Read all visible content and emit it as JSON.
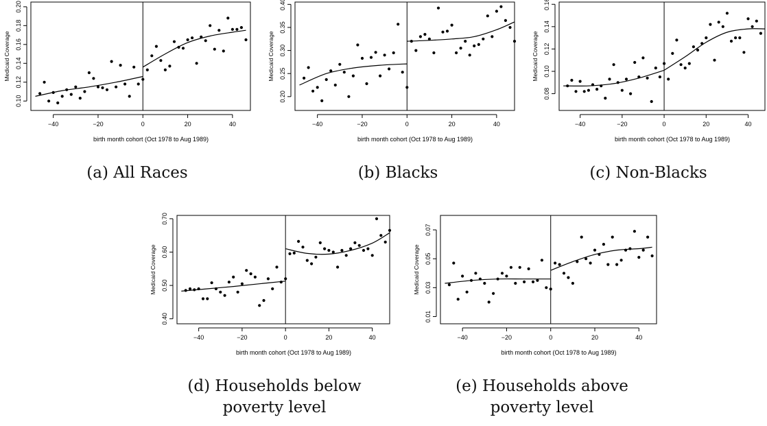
{
  "figure": {
    "captions": [
      {
        "line1": "(a) All Races",
        "line2": ""
      },
      {
        "line1": "(b) Blacks",
        "line2": ""
      },
      {
        "line1": "(c) Non-Blacks",
        "line2": ""
      },
      {
        "line1": "(d) Households below",
        "line2": "poverty level"
      },
      {
        "line1": "(e) Households above",
        "line2": "poverty level"
      }
    ]
  },
  "chart_data": [
    {
      "type": "scatter",
      "panel": "a",
      "xlabel": "birth month cohort (Oct 1978 to Aug 1989)",
      "ylabel": "Medicaid Coverage",
      "xlim": [
        -50,
        48
      ],
      "ylim": [
        0.09,
        0.205
      ],
      "xticks": [
        -40,
        -20,
        0,
        20,
        40
      ],
      "yticks": [
        "0.10",
        "0.12",
        "0.14",
        "0.16",
        "0.18",
        "0.20"
      ],
      "cutoff": 0,
      "points": [
        [
          -46,
          0.108
        ],
        [
          -44,
          0.12
        ],
        [
          -42,
          0.1
        ],
        [
          -40,
          0.109
        ],
        [
          -38,
          0.098
        ],
        [
          -36,
          0.105
        ],
        [
          -34,
          0.112
        ],
        [
          -32,
          0.107
        ],
        [
          -30,
          0.115
        ],
        [
          -28,
          0.103
        ],
        [
          -26,
          0.11
        ],
        [
          -24,
          0.13
        ],
        [
          -22,
          0.124
        ],
        [
          -20,
          0.115
        ],
        [
          -18,
          0.114
        ],
        [
          -16,
          0.112
        ],
        [
          -14,
          0.142
        ],
        [
          -12,
          0.115
        ],
        [
          -10,
          0.138
        ],
        [
          -8,
          0.118
        ],
        [
          -6,
          0.105
        ],
        [
          -4,
          0.136
        ],
        [
          -2,
          0.118
        ],
        [
          0,
          0.123
        ],
        [
          2,
          0.133
        ],
        [
          4,
          0.148
        ],
        [
          6,
          0.158
        ],
        [
          8,
          0.143
        ],
        [
          10,
          0.133
        ],
        [
          12,
          0.137
        ],
        [
          14,
          0.163
        ],
        [
          16,
          0.157
        ],
        [
          18,
          0.156
        ],
        [
          20,
          0.165
        ],
        [
          22,
          0.167
        ],
        [
          24,
          0.14
        ],
        [
          26,
          0.168
        ],
        [
          28,
          0.164
        ],
        [
          30,
          0.18
        ],
        [
          32,
          0.155
        ],
        [
          34,
          0.175
        ],
        [
          36,
          0.153
        ],
        [
          38,
          0.188
        ],
        [
          40,
          0.176
        ],
        [
          42,
          0.176
        ],
        [
          44,
          0.178
        ],
        [
          46,
          0.165
        ]
      ],
      "fit_left": [
        [
          -48,
          0.105
        ],
        [
          -36,
          0.111
        ],
        [
          -24,
          0.115
        ],
        [
          -12,
          0.12
        ],
        [
          0,
          0.126
        ]
      ],
      "fit_right": [
        [
          0,
          0.136
        ],
        [
          10,
          0.15
        ],
        [
          20,
          0.162
        ],
        [
          30,
          0.169
        ],
        [
          40,
          0.173
        ],
        [
          46,
          0.175
        ]
      ]
    },
    {
      "type": "scatter",
      "panel": "b",
      "xlabel": "birth month cohort (Oct 1978 to Aug 1989)",
      "ylabel": "Medicaid Coverage",
      "xlim": [
        -50,
        48
      ],
      "ylim": [
        0.17,
        0.405
      ],
      "xticks": [
        -40,
        -20,
        0,
        20,
        40
      ],
      "yticks": [
        "0.20",
        "0.25",
        "0.30",
        "0.35",
        "0.40"
      ],
      "cutoff": 0,
      "points": [
        [
          -46,
          0.24
        ],
        [
          -44,
          0.263
        ],
        [
          -42,
          0.212
        ],
        [
          -40,
          0.22
        ],
        [
          -38,
          0.191
        ],
        [
          -36,
          0.237
        ],
        [
          -34,
          0.256
        ],
        [
          -32,
          0.225
        ],
        [
          -30,
          0.27
        ],
        [
          -28,
          0.253
        ],
        [
          -26,
          0.2
        ],
        [
          -24,
          0.245
        ],
        [
          -22,
          0.312
        ],
        [
          -20,
          0.283
        ],
        [
          -18,
          0.228
        ],
        [
          -16,
          0.285
        ],
        [
          -14,
          0.296
        ],
        [
          -12,
          0.245
        ],
        [
          -10,
          0.29
        ],
        [
          -8,
          0.26
        ],
        [
          -6,
          0.295
        ],
        [
          -4,
          0.357
        ],
        [
          -2,
          0.253
        ],
        [
          0,
          0.22
        ],
        [
          2,
          0.32
        ],
        [
          4,
          0.3
        ],
        [
          6,
          0.33
        ],
        [
          8,
          0.335
        ],
        [
          10,
          0.325
        ],
        [
          12,
          0.295
        ],
        [
          14,
          0.392
        ],
        [
          16,
          0.34
        ],
        [
          18,
          0.342
        ],
        [
          20,
          0.355
        ],
        [
          22,
          0.295
        ],
        [
          24,
          0.305
        ],
        [
          26,
          0.32
        ],
        [
          28,
          0.29
        ],
        [
          30,
          0.31
        ],
        [
          32,
          0.313
        ],
        [
          34,
          0.325
        ],
        [
          36,
          0.375
        ],
        [
          38,
          0.33
        ],
        [
          40,
          0.385
        ],
        [
          42,
          0.395
        ],
        [
          44,
          0.365
        ],
        [
          46,
          0.35
        ],
        [
          48,
          0.32
        ]
      ],
      "fit_left": [
        [
          -48,
          0.225
        ],
        [
          -36,
          0.25
        ],
        [
          -24,
          0.262
        ],
        [
          -12,
          0.268
        ],
        [
          0,
          0.271
        ]
      ],
      "fit_right": [
        [
          0,
          0.32
        ],
        [
          10,
          0.322
        ],
        [
          20,
          0.325
        ],
        [
          30,
          0.33
        ],
        [
          40,
          0.345
        ],
        [
          48,
          0.362
        ]
      ]
    },
    {
      "type": "scatter",
      "panel": "c",
      "xlabel": "birth month cohort (Oct 1978 to Aug 1989)",
      "ylabel": "Medicaid Coverage",
      "xlim": [
        -50,
        48
      ],
      "ylim": [
        0.065,
        0.162
      ],
      "xticks": [
        -40,
        -20,
        0,
        20,
        40
      ],
      "yticks": [
        "0.08",
        "0.10",
        "0.12",
        "0.14",
        "0.16"
      ],
      "cutoff": 0,
      "points": [
        [
          -46,
          0.087
        ],
        [
          -44,
          0.092
        ],
        [
          -42,
          0.082
        ],
        [
          -40,
          0.091
        ],
        [
          -38,
          0.082
        ],
        [
          -36,
          0.083
        ],
        [
          -34,
          0.088
        ],
        [
          -32,
          0.084
        ],
        [
          -30,
          0.087
        ],
        [
          -28,
          0.076
        ],
        [
          -26,
          0.093
        ],
        [
          -24,
          0.106
        ],
        [
          -22,
          0.09
        ],
        [
          -20,
          0.083
        ],
        [
          -18,
          0.093
        ],
        [
          -16,
          0.08
        ],
        [
          -14,
          0.108
        ],
        [
          -12,
          0.095
        ],
        [
          -10,
          0.112
        ],
        [
          -8,
          0.094
        ],
        [
          -6,
          0.073
        ],
        [
          -4,
          0.103
        ],
        [
          -2,
          0.095
        ],
        [
          0,
          0.107
        ],
        [
          2,
          0.093
        ],
        [
          4,
          0.116
        ],
        [
          6,
          0.128
        ],
        [
          8,
          0.106
        ],
        [
          10,
          0.103
        ],
        [
          12,
          0.107
        ],
        [
          14,
          0.122
        ],
        [
          16,
          0.119
        ],
        [
          18,
          0.125
        ],
        [
          20,
          0.13
        ],
        [
          22,
          0.142
        ],
        [
          24,
          0.11
        ],
        [
          26,
          0.144
        ],
        [
          28,
          0.14
        ],
        [
          30,
          0.152
        ],
        [
          32,
          0.127
        ],
        [
          34,
          0.13
        ],
        [
          36,
          0.13
        ],
        [
          38,
          0.117
        ],
        [
          40,
          0.147
        ],
        [
          42,
          0.14
        ],
        [
          44,
          0.145
        ],
        [
          46,
          0.134
        ]
      ],
      "fit_left": [
        [
          -48,
          0.087
        ],
        [
          -36,
          0.087
        ],
        [
          -24,
          0.089
        ],
        [
          -12,
          0.094
        ],
        [
          0,
          0.101
        ]
      ],
      "fit_right": [
        [
          0,
          0.101
        ],
        [
          10,
          0.113
        ],
        [
          20,
          0.126
        ],
        [
          30,
          0.135
        ],
        [
          40,
          0.138
        ],
        [
          48,
          0.138
        ]
      ]
    },
    {
      "type": "scatter",
      "panel": "d",
      "xlabel": "birth month cohort (Oct 1978 to Aug 1989)",
      "ylabel": "Medicaid Coverage",
      "xlim": [
        -50,
        48
      ],
      "ylim": [
        0.385,
        0.71
      ],
      "xticks": [
        -40,
        -20,
        0,
        20,
        40
      ],
      "yticks": [
        "0.40",
        "0.50",
        "0.60",
        "0.70"
      ],
      "cutoff": 0,
      "points": [
        [
          -46,
          0.485
        ],
        [
          -44,
          0.49
        ],
        [
          -42,
          0.487
        ],
        [
          -40,
          0.49
        ],
        [
          -38,
          0.46
        ],
        [
          -36,
          0.46
        ],
        [
          -34,
          0.508
        ],
        [
          -32,
          0.49
        ],
        [
          -30,
          0.48
        ],
        [
          -28,
          0.47
        ],
        [
          -26,
          0.51
        ],
        [
          -24,
          0.525
        ],
        [
          -22,
          0.48
        ],
        [
          -20,
          0.505
        ],
        [
          -18,
          0.545
        ],
        [
          -16,
          0.535
        ],
        [
          -14,
          0.525
        ],
        [
          -12,
          0.44
        ],
        [
          -10,
          0.455
        ],
        [
          -8,
          0.52
        ],
        [
          -6,
          0.49
        ],
        [
          -4,
          0.555
        ],
        [
          -2,
          0.51
        ],
        [
          0,
          0.52
        ],
        [
          2,
          0.595
        ],
        [
          4,
          0.597
        ],
        [
          6,
          0.632
        ],
        [
          8,
          0.615
        ],
        [
          10,
          0.575
        ],
        [
          12,
          0.565
        ],
        [
          14,
          0.585
        ],
        [
          16,
          0.628
        ],
        [
          18,
          0.61
        ],
        [
          20,
          0.605
        ],
        [
          22,
          0.6
        ],
        [
          24,
          0.555
        ],
        [
          26,
          0.605
        ],
        [
          28,
          0.59
        ],
        [
          30,
          0.61
        ],
        [
          32,
          0.628
        ],
        [
          34,
          0.62
        ],
        [
          36,
          0.605
        ],
        [
          38,
          0.61
        ],
        [
          40,
          0.59
        ],
        [
          42,
          0.7
        ],
        [
          44,
          0.65
        ],
        [
          46,
          0.63
        ],
        [
          48,
          0.665
        ]
      ],
      "fit_left": [
        [
          -48,
          0.483
        ],
        [
          -36,
          0.49
        ],
        [
          -24,
          0.497
        ],
        [
          -12,
          0.505
        ],
        [
          0,
          0.513
        ]
      ],
      "fit_right": [
        [
          0,
          0.61
        ],
        [
          10,
          0.596
        ],
        [
          20,
          0.594
        ],
        [
          30,
          0.605
        ],
        [
          40,
          0.627
        ],
        [
          48,
          0.658
        ]
      ]
    },
    {
      "type": "scatter",
      "panel": "e",
      "xlabel": "birth month cohort (Oct 1978 to Aug 1989)",
      "ylabel": "Medicaid Coverage",
      "xlim": [
        -50,
        48
      ],
      "ylim": [
        0.005,
        0.08
      ],
      "xticks": [
        -40,
        -20,
        0,
        20,
        40
      ],
      "yticks": [
        "0.01",
        "0.03",
        "0.05",
        "0.07"
      ],
      "cutoff": 0,
      "points": [
        [
          -46,
          0.032
        ],
        [
          -44,
          0.047
        ],
        [
          -42,
          0.022
        ],
        [
          -40,
          0.038
        ],
        [
          -38,
          0.027
        ],
        [
          -36,
          0.035
        ],
        [
          -34,
          0.04
        ],
        [
          -32,
          0.036
        ],
        [
          -30,
          0.033
        ],
        [
          -28,
          0.02
        ],
        [
          -26,
          0.026
        ],
        [
          -24,
          0.036
        ],
        [
          -22,
          0.04
        ],
        [
          -20,
          0.038
        ],
        [
          -18,
          0.044
        ],
        [
          -16,
          0.033
        ],
        [
          -14,
          0.044
        ],
        [
          -12,
          0.034
        ],
        [
          -10,
          0.043
        ],
        [
          -8,
          0.034
        ],
        [
          -6,
          0.035
        ],
        [
          -4,
          0.049
        ],
        [
          -2,
          0.03
        ],
        [
          0,
          0.029
        ],
        [
          2,
          0.047
        ],
        [
          4,
          0.046
        ],
        [
          6,
          0.04
        ],
        [
          8,
          0.037
        ],
        [
          10,
          0.033
        ],
        [
          12,
          0.048
        ],
        [
          14,
          0.065
        ],
        [
          16,
          0.05
        ],
        [
          18,
          0.047
        ],
        [
          20,
          0.056
        ],
        [
          22,
          0.053
        ],
        [
          24,
          0.06
        ],
        [
          26,
          0.046
        ],
        [
          28,
          0.065
        ],
        [
          30,
          0.046
        ],
        [
          32,
          0.049
        ],
        [
          34,
          0.056
        ],
        [
          36,
          0.057
        ],
        [
          38,
          0.069
        ],
        [
          40,
          0.051
        ],
        [
          42,
          0.056
        ],
        [
          44,
          0.065
        ],
        [
          46,
          0.052
        ]
      ],
      "fit_left": [
        [
          -48,
          0.033
        ],
        [
          -36,
          0.035
        ],
        [
          -24,
          0.036
        ],
        [
          -12,
          0.036
        ],
        [
          0,
          0.036
        ]
      ],
      "fit_right": [
        [
          0,
          0.042
        ],
        [
          10,
          0.048
        ],
        [
          20,
          0.053
        ],
        [
          30,
          0.056
        ],
        [
          40,
          0.057
        ],
        [
          46,
          0.058
        ]
      ]
    }
  ]
}
